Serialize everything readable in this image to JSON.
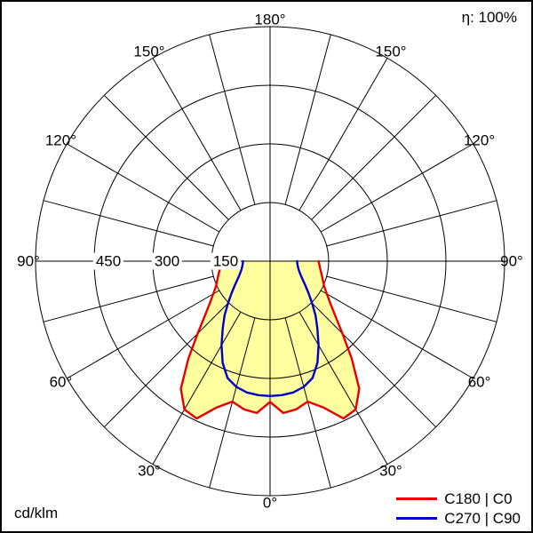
{
  "header": {
    "eta": "η: 100%"
  },
  "footer": {
    "unit": "cd/klm"
  },
  "legend": [
    {
      "label": "C180 | C0",
      "color": "#e60000"
    },
    {
      "label": "C270 | C90",
      "color": "#0000cc"
    }
  ],
  "chart_data": {
    "type": "line",
    "subtype": "polar-photometric-intensity-distribution",
    "unit": "cd/klm",
    "efficiency_label": "η: 100%",
    "orientation": "0° at bottom (nadir), 180° at top, angles mirrored left and right",
    "grid": {
      "angle_step_deg": 15,
      "angle_label_step_deg": 30
    },
    "radial_axis": {
      "ticks": [
        150,
        300,
        450
      ],
      "max": 600
    },
    "angle_labels": [
      {
        "deg": 0,
        "text": "0°"
      },
      {
        "deg": 30,
        "text": "30°"
      },
      {
        "deg": 60,
        "text": "60°"
      },
      {
        "deg": 90,
        "text": "90°"
      },
      {
        "deg": 120,
        "text": "120°"
      },
      {
        "deg": 150,
        "text": "150°"
      },
      {
        "deg": 180,
        "text": "180°"
      }
    ],
    "series": [
      {
        "name": "C180 | C0",
        "color": "#e60000",
        "fill": "#ffffa0",
        "symmetric": true,
        "gamma_deg": [
          0,
          5,
          10,
          15,
          20,
          25,
          30,
          35,
          40,
          45,
          50,
          55,
          60,
          65,
          70,
          75,
          80,
          85,
          90
        ],
        "values_cd_per_klm": [
          360,
          390,
          385,
          372,
          398,
          444,
          438,
          398,
          325,
          262,
          218,
          188,
          168,
          153,
          144,
          137,
          131,
          127,
          124
        ]
      },
      {
        "name": "C270 | C90",
        "color": "#0000cc",
        "fill": null,
        "symmetric": true,
        "gamma_deg": [
          0,
          5,
          10,
          15,
          20,
          25,
          30,
          35,
          40,
          45,
          50,
          55,
          60,
          65,
          70,
          75,
          80,
          85,
          90
        ],
        "values_cd_per_klm": [
          345,
          344,
          341,
          333,
          318,
          287,
          248,
          211,
          181,
          152,
          129,
          111,
          97,
          87,
          80,
          75,
          72,
          70,
          69
        ]
      }
    ]
  }
}
